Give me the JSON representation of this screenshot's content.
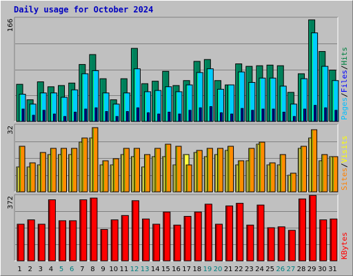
{
  "title": "Daily usage for October 2024",
  "chart_data": [
    {
      "type": "bar",
      "panel": "hits-files-pages",
      "ymax_label": "166",
      "ymax": 166,
      "legend": [
        {
          "text": "Pages",
          "color": "#00c0ff"
        },
        {
          "text": "/",
          "color": "#000000"
        },
        {
          "text": "Files",
          "color": "#0000ff"
        },
        {
          "text": "/",
          "color": "#000000"
        },
        {
          "text": "Hits",
          "color": "#008040"
        }
      ],
      "series": [
        {
          "key": "hits",
          "color": "#00805a",
          "values": [
            60,
            35,
            64,
            56,
            58,
            62,
            92,
            108,
            69,
            35,
            69,
            118,
            61,
            65,
            81,
            58,
            66,
            97,
            100,
            66,
            59,
            93,
            89,
            90,
            91,
            90,
            47,
            77,
            164,
            113,
            83
          ]
        },
        {
          "key": "files",
          "color": "#00ccff",
          "values": [
            44,
            28,
            46,
            46,
            39,
            51,
            77,
            82,
            46,
            28,
            46,
            85,
            48,
            50,
            56,
            48,
            59,
            79,
            85,
            52,
            59,
            80,
            63,
            70,
            70,
            57,
            28,
            69,
            143,
            89,
            66
          ]
        },
        {
          "key": "pages",
          "color": "#0000ff",
          "values": [
            20,
            10,
            18,
            12,
            8,
            15,
            20,
            22,
            16,
            8,
            16,
            22,
            14,
            12,
            15,
            12,
            18,
            22,
            24,
            14,
            12,
            21,
            18,
            20,
            20,
            15,
            8,
            20,
            26,
            22,
            18
          ]
        }
      ]
    },
    {
      "type": "bar",
      "panel": "visits-sites",
      "ymax_label": "32",
      "ymax": 32,
      "legend": [
        {
          "text": "Sites",
          "color": "#ff8000"
        },
        {
          "text": "/",
          "color": "#000000"
        },
        {
          "text": "Visits",
          "color": "#ffff00"
        }
      ],
      "series": [
        {
          "key": "visits",
          "color": "#ffff40",
          "values": [
            12,
            12,
            13,
            18,
            18,
            18,
            24,
            26,
            13,
            13,
            18,
            17,
            12,
            17,
            17,
            13,
            18,
            19,
            17,
            18,
            20,
            13,
            15,
            23,
            13,
            13,
            8,
            21,
            26,
            15,
            17
          ]
        },
        {
          "key": "sites",
          "color": "#ff8c00",
          "values": [
            22,
            14,
            19,
            21,
            21,
            21,
            26,
            31,
            15,
            16,
            21,
            21,
            18,
            21,
            23,
            22,
            13,
            20,
            21,
            21,
            22,
            15,
            21,
            24,
            14,
            18,
            9,
            22,
            30,
            18,
            17
          ]
        }
      ]
    },
    {
      "type": "bar",
      "panel": "kbytes",
      "ymax_label": "372",
      "ymax": 372,
      "legend": [
        {
          "text": "KBytes",
          "color": "#ff0000"
        }
      ],
      "series": [
        {
          "key": "kbytes",
          "color": "#ff0000",
          "values": [
            210,
            235,
            210,
            350,
            230,
            230,
            350,
            360,
            180,
            235,
            260,
            345,
            240,
            210,
            280,
            205,
            255,
            280,
            325,
            210,
            315,
            330,
            205,
            320,
            190,
            195,
            175,
            355,
            375,
            235,
            240
          ]
        }
      ]
    }
  ],
  "x_labels": [
    {
      "text": "1",
      "color": "#000000"
    },
    {
      "text": "2",
      "color": "#000000"
    },
    {
      "text": "3",
      "color": "#000000"
    },
    {
      "text": "4",
      "color": "#000000"
    },
    {
      "text": "5",
      "color": "#008080"
    },
    {
      "text": "6",
      "color": "#008080"
    },
    {
      "text": "7",
      "color": "#000000"
    },
    {
      "text": "8",
      "color": "#000000"
    },
    {
      "text": "9",
      "color": "#000000"
    },
    {
      "text": "10",
      "color": "#000000"
    },
    {
      "text": "11",
      "color": "#000000"
    },
    {
      "text": "12",
      "color": "#008080"
    },
    {
      "text": "13",
      "color": "#008080"
    },
    {
      "text": "14",
      "color": "#000000"
    },
    {
      "text": "15",
      "color": "#000000"
    },
    {
      "text": "16",
      "color": "#000000"
    },
    {
      "text": "17",
      "color": "#000000"
    },
    {
      "text": "18",
      "color": "#000000"
    },
    {
      "text": "19",
      "color": "#008080"
    },
    {
      "text": "20",
      "color": "#008080"
    },
    {
      "text": "21",
      "color": "#000000"
    },
    {
      "text": "22",
      "color": "#000000"
    },
    {
      "text": "23",
      "color": "#000000"
    },
    {
      "text": "24",
      "color": "#000000"
    },
    {
      "text": "25",
      "color": "#000000"
    },
    {
      "text": "26",
      "color": "#008080"
    },
    {
      "text": "27",
      "color": "#008080"
    },
    {
      "text": "28",
      "color": "#000000"
    },
    {
      "text": "29",
      "color": "#000000"
    },
    {
      "text": "30",
      "color": "#000000"
    },
    {
      "text": "31",
      "color": "#000000"
    }
  ]
}
